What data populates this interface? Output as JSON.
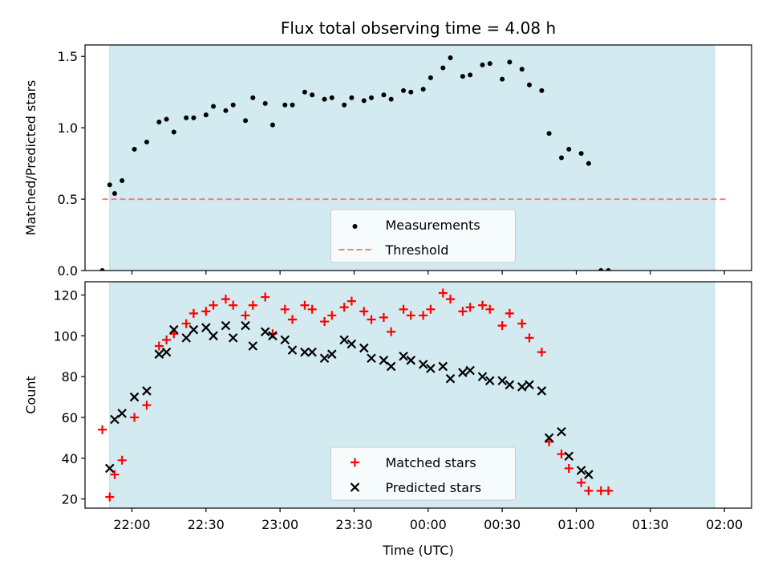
{
  "chart_data": [
    {
      "type": "scatter",
      "title": "Flux total observing time = 4.08 h",
      "xlabel": "",
      "ylabel": "Matched/Predicted stars",
      "xlim": [
        "21:41",
        "02:11"
      ],
      "ylim": [
        0,
        1.58
      ],
      "yticks": [
        "0.0",
        "0.5",
        "1.0",
        "1.5"
      ],
      "shaded_span": [
        "21:51",
        "01:56"
      ],
      "shade_color": "#d3eaf0",
      "series": [
        {
          "name": "Measurements",
          "marker": "dot",
          "color": "#000000",
          "points": [
            [
              "21:48",
              0.0
            ],
            [
              "21:51",
              0.6
            ],
            [
              "21:53",
              0.54
            ],
            [
              "21:56",
              0.63
            ],
            [
              "22:01",
              0.85
            ],
            [
              "22:06",
              0.9
            ],
            [
              "22:11",
              1.04
            ],
            [
              "22:14",
              1.06
            ],
            [
              "22:17",
              0.97
            ],
            [
              "22:22",
              1.07
            ],
            [
              "22:25",
              1.07
            ],
            [
              "22:30",
              1.09
            ],
            [
              "22:33",
              1.15
            ],
            [
              "22:38",
              1.12
            ],
            [
              "22:41",
              1.16
            ],
            [
              "22:46",
              1.05
            ],
            [
              "22:49",
              1.21
            ],
            [
              "22:54",
              1.17
            ],
            [
              "22:57",
              1.02
            ],
            [
              "23:02",
              1.16
            ],
            [
              "23:05",
              1.16
            ],
            [
              "23:10",
              1.25
            ],
            [
              "23:13",
              1.23
            ],
            [
              "23:18",
              1.2
            ],
            [
              "23:21",
              1.21
            ],
            [
              "23:26",
              1.16
            ],
            [
              "23:29",
              1.21
            ],
            [
              "23:34",
              1.19
            ],
            [
              "23:37",
              1.21
            ],
            [
              "23:42",
              1.23
            ],
            [
              "23:45",
              1.2
            ],
            [
              "23:50",
              1.26
            ],
            [
              "23:53",
              1.25
            ],
            [
              "23:58",
              1.27
            ],
            [
              "00:01",
              1.35
            ],
            [
              "00:06",
              1.42
            ],
            [
              "00:09",
              1.49
            ],
            [
              "00:14",
              1.36
            ],
            [
              "00:17",
              1.37
            ],
            [
              "00:22",
              1.44
            ],
            [
              "00:25",
              1.45
            ],
            [
              "00:30",
              1.34
            ],
            [
              "00:33",
              1.46
            ],
            [
              "00:38",
              1.41
            ],
            [
              "00:41",
              1.3
            ],
            [
              "00:46",
              1.26
            ],
            [
              "00:49",
              0.96
            ],
            [
              "00:54",
              0.79
            ],
            [
              "00:57",
              0.85
            ],
            [
              "01:02",
              0.82
            ],
            [
              "01:05",
              0.75
            ],
            [
              "01:10",
              0.0
            ],
            [
              "01:13",
              0.0
            ]
          ]
        },
        {
          "name": "Threshold",
          "style": "dashed",
          "color": "#f08080",
          "value": 0.5,
          "x_range": [
            "21:48",
            "02:01"
          ]
        }
      ],
      "legend": {
        "placement": "bottom-center",
        "entries": [
          "Measurements",
          "Threshold"
        ]
      }
    },
    {
      "type": "scatter",
      "xlabel": "Time (UTC)",
      "ylabel": "Count",
      "xlim": [
        "21:41",
        "02:11"
      ],
      "ylim": [
        15.5,
        126.5
      ],
      "yticks": [
        "20",
        "40",
        "60",
        "80",
        "100",
        "120"
      ],
      "xticks": [
        "22:00",
        "22:30",
        "23:00",
        "23:30",
        "00:00",
        "00:30",
        "01:00",
        "01:30",
        "02:00"
      ],
      "shaded_span": [
        "21:51",
        "01:56"
      ],
      "shade_color": "#d3eaf0",
      "series": [
        {
          "name": "Matched stars",
          "marker": "plus",
          "color": "#ff0000",
          "points": [
            [
              "21:48",
              54
            ],
            [
              "21:51",
              21
            ],
            [
              "21:53",
              32
            ],
            [
              "21:56",
              39
            ],
            [
              "22:01",
              60
            ],
            [
              "22:06",
              66
            ],
            [
              "22:11",
              95
            ],
            [
              "22:14",
              98
            ],
            [
              "22:17",
              101
            ],
            [
              "22:22",
              106
            ],
            [
              "22:25",
              111
            ],
            [
              "22:30",
              112
            ],
            [
              "22:33",
              115
            ],
            [
              "22:38",
              118
            ],
            [
              "22:41",
              115
            ],
            [
              "22:46",
              110
            ],
            [
              "22:49",
              115
            ],
            [
              "22:54",
              119
            ],
            [
              "22:57",
              101
            ],
            [
              "23:02",
              113
            ],
            [
              "23:05",
              108
            ],
            [
              "23:10",
              115
            ],
            [
              "23:13",
              113
            ],
            [
              "23:18",
              107
            ],
            [
              "23:21",
              110
            ],
            [
              "23:26",
              114
            ],
            [
              "23:29",
              117
            ],
            [
              "23:34",
              112
            ],
            [
              "23:37",
              108
            ],
            [
              "23:42",
              109
            ],
            [
              "23:45",
              102
            ],
            [
              "23:50",
              113
            ],
            [
              "23:53",
              110
            ],
            [
              "23:58",
              110
            ],
            [
              "00:01",
              113
            ],
            [
              "00:06",
              121
            ],
            [
              "00:09",
              118
            ],
            [
              "00:14",
              112
            ],
            [
              "00:17",
              114
            ],
            [
              "00:22",
              115
            ],
            [
              "00:25",
              113
            ],
            [
              "00:30",
              105
            ],
            [
              "00:33",
              111
            ],
            [
              "00:38",
              106
            ],
            [
              "00:41",
              99
            ],
            [
              "00:46",
              92
            ],
            [
              "00:49",
              48
            ],
            [
              "00:54",
              42
            ],
            [
              "00:57",
              35
            ],
            [
              "01:02",
              28
            ],
            [
              "01:05",
              24
            ],
            [
              "01:10",
              24
            ],
            [
              "01:13",
              24
            ]
          ]
        },
        {
          "name": "Predicted stars",
          "marker": "x",
          "color": "#000000",
          "points": [
            [
              "21:51",
              35
            ],
            [
              "21:53",
              59
            ],
            [
              "21:56",
              62
            ],
            [
              "22:01",
              70
            ],
            [
              "22:06",
              73
            ],
            [
              "22:11",
              91
            ],
            [
              "22:14",
              92
            ],
            [
              "22:17",
              103
            ],
            [
              "22:22",
              99
            ],
            [
              "22:25",
              103
            ],
            [
              "22:30",
              104
            ],
            [
              "22:33",
              100
            ],
            [
              "22:38",
              105
            ],
            [
              "22:41",
              99
            ],
            [
              "22:46",
              105
            ],
            [
              "22:49",
              95
            ],
            [
              "22:54",
              102
            ],
            [
              "22:57",
              100
            ],
            [
              "23:02",
              98
            ],
            [
              "23:05",
              93
            ],
            [
              "23:10",
              92
            ],
            [
              "23:13",
              92
            ],
            [
              "23:18",
              89
            ],
            [
              "23:21",
              91
            ],
            [
              "23:26",
              98
            ],
            [
              "23:29",
              96
            ],
            [
              "23:34",
              94
            ],
            [
              "23:37",
              89
            ],
            [
              "23:42",
              88
            ],
            [
              "23:45",
              85
            ],
            [
              "23:50",
              90
            ],
            [
              "23:53",
              88
            ],
            [
              "23:58",
              86
            ],
            [
              "00:01",
              84
            ],
            [
              "00:06",
              85
            ],
            [
              "00:09",
              79
            ],
            [
              "00:14",
              82
            ],
            [
              "00:17",
              83
            ],
            [
              "00:22",
              80
            ],
            [
              "00:25",
              78
            ],
            [
              "00:30",
              78
            ],
            [
              "00:33",
              76
            ],
            [
              "00:38",
              75
            ],
            [
              "00:41",
              76
            ],
            [
              "00:46",
              73
            ],
            [
              "00:49",
              50
            ],
            [
              "00:54",
              53
            ],
            [
              "00:57",
              41
            ],
            [
              "01:02",
              34
            ],
            [
              "01:05",
              32
            ]
          ]
        }
      ],
      "legend": {
        "placement": "bottom-center",
        "entries": [
          "Matched stars",
          "Predicted stars"
        ]
      }
    }
  ]
}
